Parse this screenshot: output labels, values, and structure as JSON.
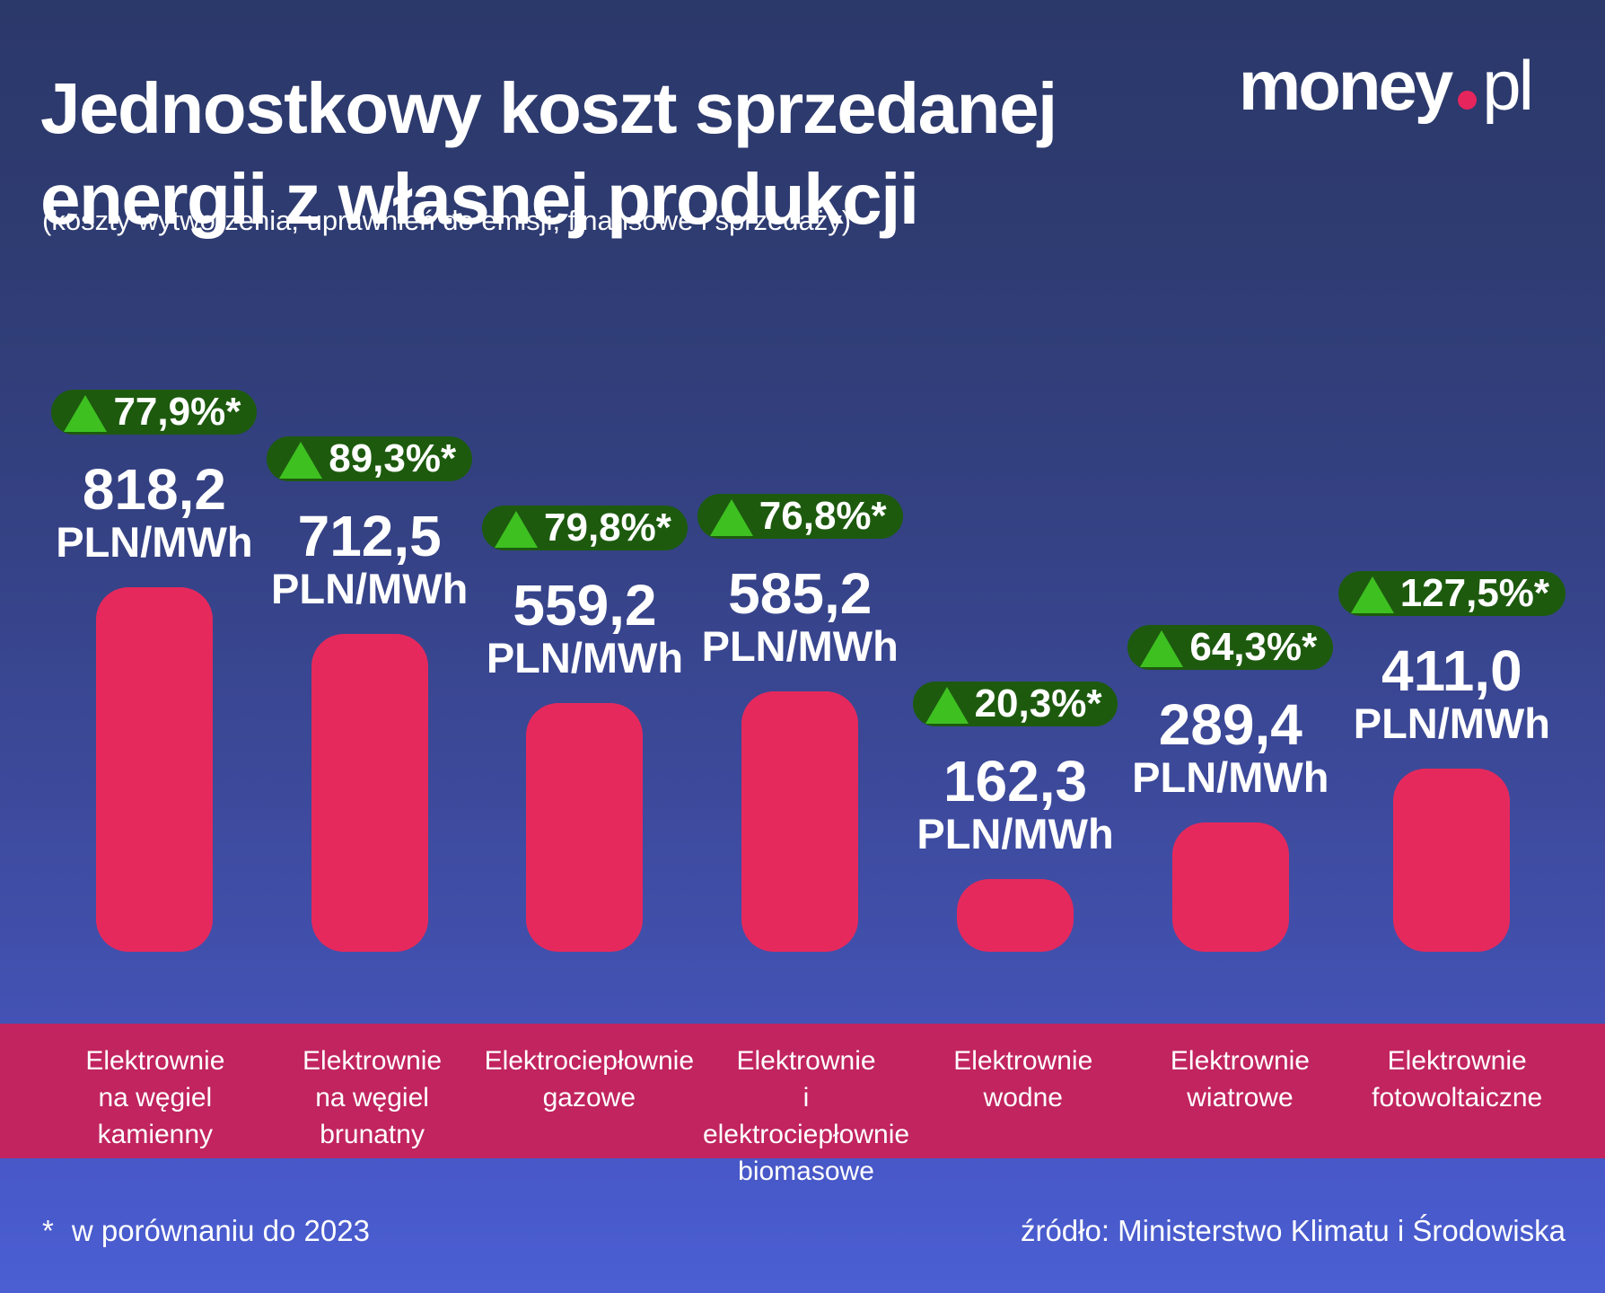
{
  "header": {
    "title_line1": "Jednostkowy koszt sprzedanej",
    "title_line2": "energii z własnej produkcji",
    "subtitle": "(koszty wytworzenia, uprawnień do emisji, finansowe i sprzedaży)",
    "logo": {
      "money": "money",
      "pl": "pl"
    }
  },
  "chart_data": {
    "type": "bar",
    "title": "Jednostkowy koszt sprzedanej energii z własnej produkcji",
    "subtitle": "(koszty wytworzenia, uprawnień do emisji, finansowe i sprzedaży)",
    "unit": "PLN/MWh",
    "categories": [
      "Elektrownie na węgiel kamienny",
      "Elektrownie na węgiel brunatny",
      "Elektrociepłownie gazowe",
      "Elektrownie i elektrociepłownie biomasowe",
      "Elektrownie wodne",
      "Elektrownie wiatrowe",
      "Elektrownie fotowoltaiczne"
    ],
    "category_lines": [
      "Elektrownie\nna węgiel\nkamienny",
      "Elektrownie\nna węgiel\nbrunatny",
      "Elektrociepłownie\ngazowe",
      "Elektrownie\ni elektrociepłownie\nbiomasowe",
      "Elektrownie\nwodne",
      "Elektrownie\nwiatrowe",
      "Elektrownie\nfotowoltaiczne"
    ],
    "values": [
      818.2,
      712.5,
      559.2,
      585.2,
      162.3,
      289.4,
      411.0
    ],
    "value_labels": [
      "818,2",
      "712,5",
      "559,2",
      "585,2",
      "162,3",
      "289,4",
      "411,0"
    ],
    "change_pct": [
      77.9,
      89.3,
      79.8,
      76.8,
      20.3,
      64.3,
      127.5
    ],
    "change_labels": [
      "77,9%*",
      "89,3%*",
      "79,8%*",
      "76,8%*",
      "20,3%*",
      "64,3%*",
      "127,5%*"
    ],
    "ylim": [
      0,
      850
    ],
    "grid": false,
    "legend": false,
    "bar_direction": "vertical"
  },
  "footer": {
    "note_mark": "*",
    "note_text": "w porównaniu do 2023",
    "source": "źródło: Ministerstwo Klimatu i Środowiska"
  },
  "colors": {
    "background_top": "#2b386a",
    "background_bottom": "#4b5fd3",
    "bar": "#e6295c",
    "category_strip": "#c1245f",
    "badge_background": "#1d5a0e",
    "badge_arrow": "#3ec021",
    "logo_dot": "#e6255c",
    "text": "#ffffff"
  }
}
